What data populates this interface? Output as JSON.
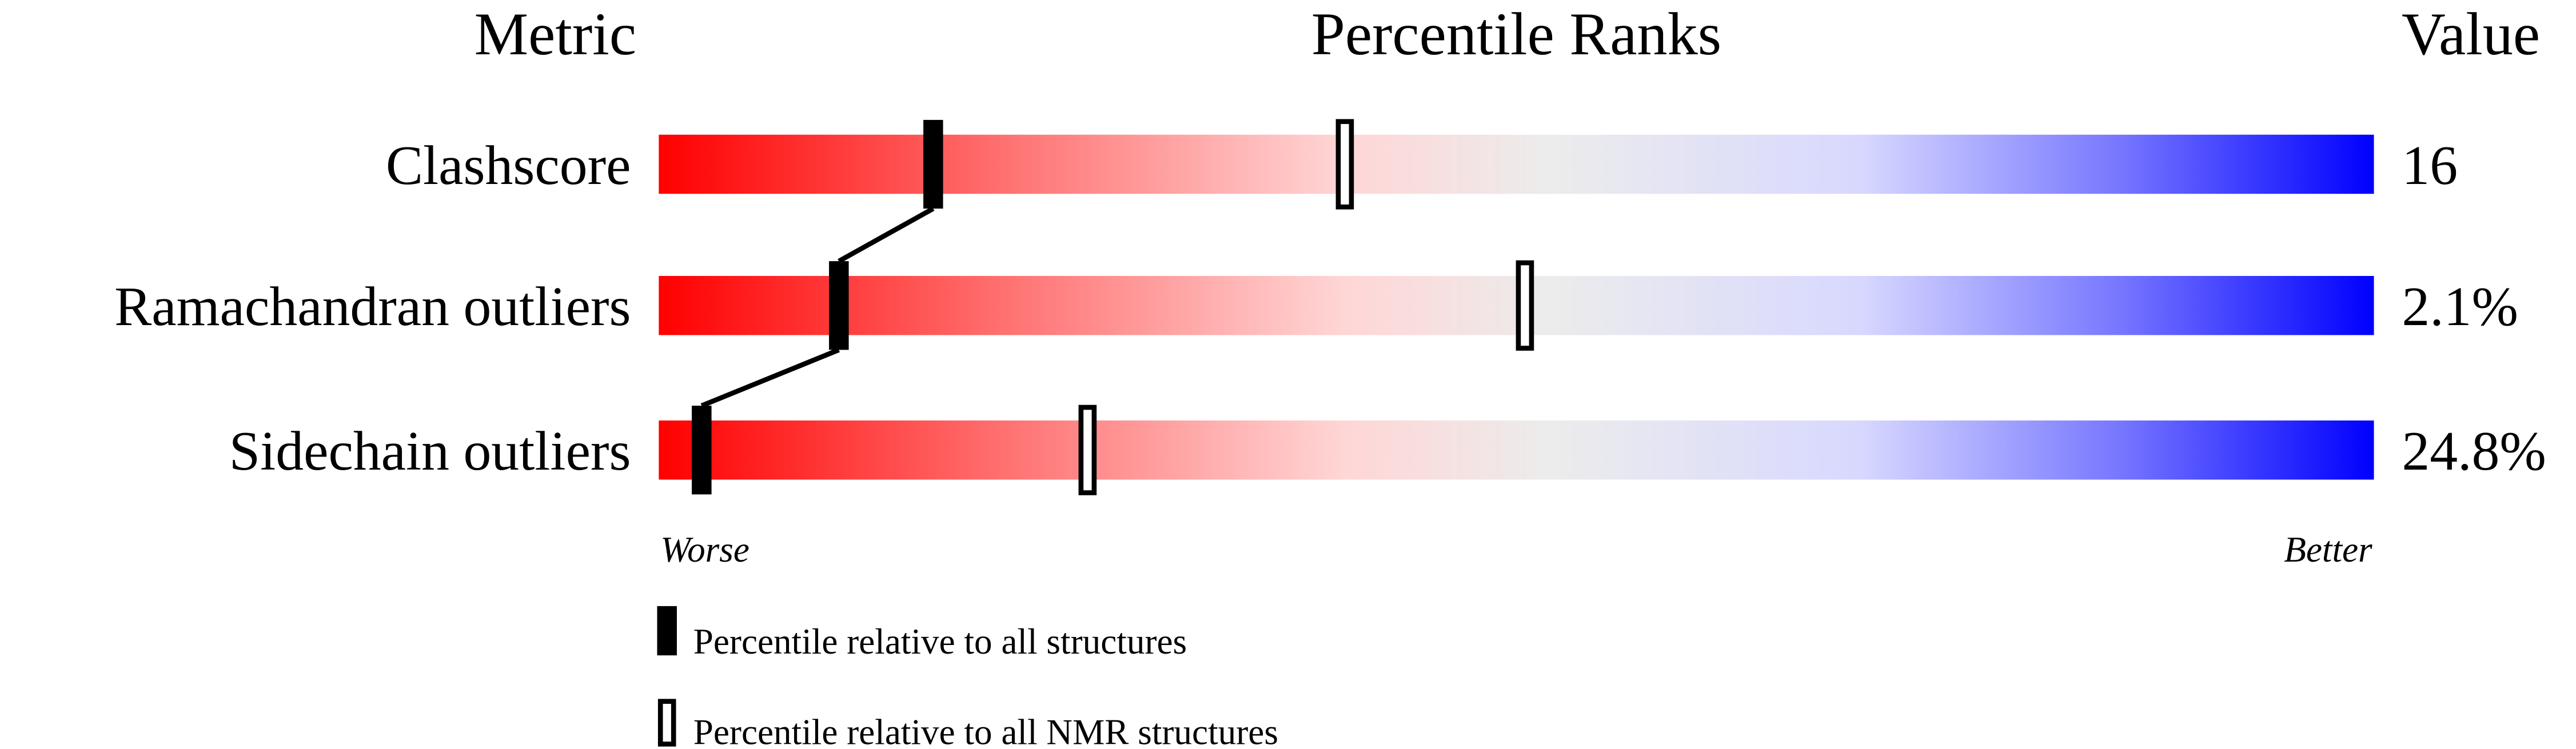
{
  "chart_data": {
    "type": "bar",
    "title": "Percentile Ranks",
    "column_headers": {
      "metric": "Metric",
      "ranks": "Percentile Ranks",
      "value": "Value"
    },
    "xlim": [
      0,
      100
    ],
    "axis_ends": {
      "left": "Worse",
      "right": "Better"
    },
    "colors": {
      "worse": "#ff0000",
      "middle": "#ececec",
      "better": "#0000ff",
      "marker": "#000000"
    },
    "metrics": [
      {
        "name": "Clashscore",
        "value": "16",
        "percentile_all": 16,
        "percentile_nmr": 40
      },
      {
        "name": "Ramachandran outliers",
        "value": "2.1%",
        "percentile_all": 10.5,
        "percentile_nmr": 50.5
      },
      {
        "name": "Sidechain outliers",
        "value": "24.8%",
        "percentile_all": 2.5,
        "percentile_nmr": 25
      }
    ],
    "legend": [
      {
        "label": "Percentile relative to all structures",
        "marker": "filled"
      },
      {
        "label": "Percentile relative to all NMR structures",
        "marker": "open"
      }
    ]
  }
}
